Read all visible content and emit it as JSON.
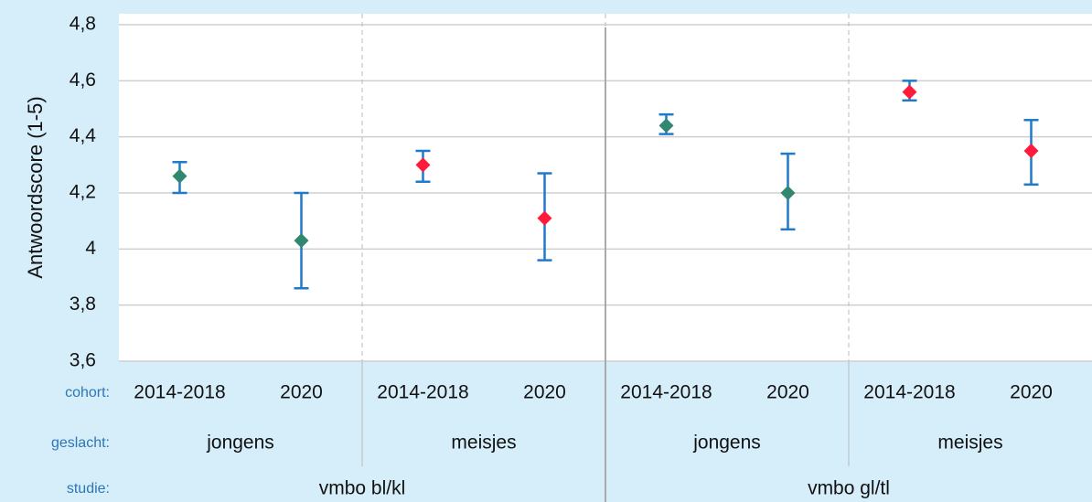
{
  "chart_data": {
    "type": "errorbar",
    "y_label": "Antwoordscore (1-5)",
    "ylim": [
      3.6,
      4.8
    ],
    "yticks": [
      {
        "value": 3.6,
        "label": "3,6"
      },
      {
        "value": 3.8,
        "label": "3,8"
      },
      4,
      {
        "value": 4.2,
        "label": "4,2"
      },
      {
        "value": 4.4,
        "label": "4,4"
      },
      {
        "value": 4.6,
        "label": "4,6"
      },
      {
        "value": 4.8,
        "label": "4,8"
      }
    ],
    "grid": true,
    "category_levels": [
      {
        "name": "cohort:",
        "labels": [
          "2014-2018",
          "2020",
          "2014-2018",
          "2020",
          "2014-2018",
          "2020",
          "2014-2018",
          "2020"
        ]
      },
      {
        "name": "geslacht:",
        "labels": [
          "jongens",
          "meisjes",
          "jongens",
          "meisjes"
        ]
      },
      {
        "name": "studie:",
        "labels": [
          "vmbo bl/kl",
          "vmbo gl/tl"
        ]
      }
    ],
    "values": [
      4.26,
      4.03,
      4.3,
      4.11,
      4.44,
      4.2,
      4.56,
      4.35
    ],
    "lower": [
      4.2,
      3.86,
      4.24,
      3.96,
      4.41,
      4.07,
      4.53,
      4.23
    ],
    "upper": [
      4.31,
      4.2,
      4.35,
      4.27,
      4.48,
      4.34,
      4.6,
      4.46
    ],
    "point_colors": [
      "#31876f",
      "#31876f",
      "#ff1a3c",
      "#ff1a3c",
      "#31876f",
      "#31876f",
      "#ff1a3c",
      "#ff1a3c"
    ],
    "error_color": "#1f7acc"
  }
}
